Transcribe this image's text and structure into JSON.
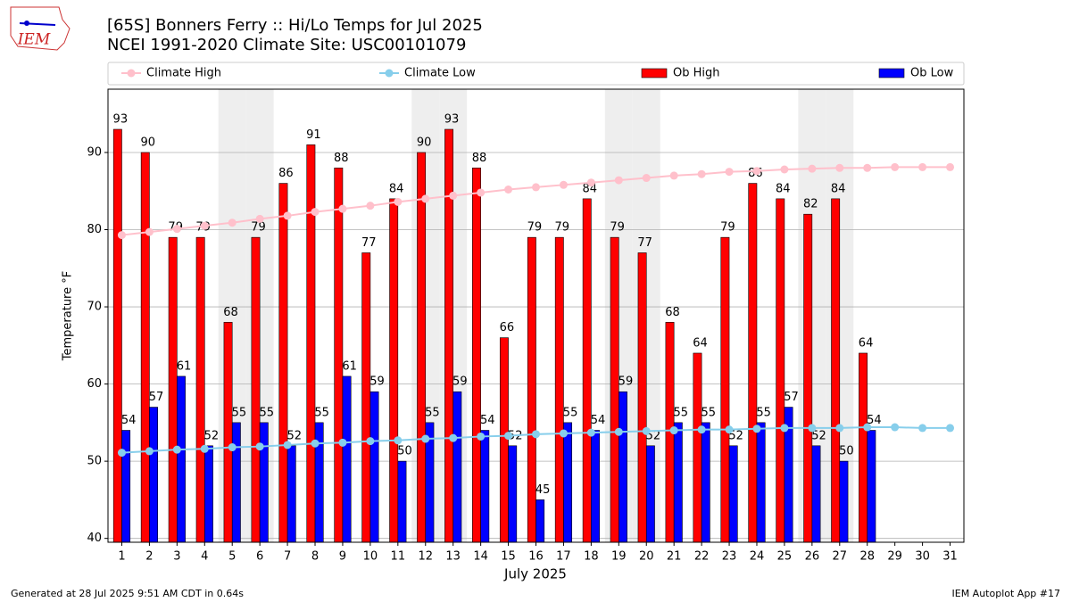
{
  "chart_data": {
    "type": "bar",
    "title": "[65S] Bonners Ferry :: Hi/Lo Temps for Jul 2025",
    "subtitle": "NCEI 1991-2020 Climate Site: USC00101079",
    "x_label": "July 2025",
    "y_label": "Temperature °F",
    "logo_text": "IEM",
    "footer_left": "Generated at 28 Jul 2025 9:51 AM CDT in 0.64s",
    "footer_right": "IEM Autoplot App #17",
    "categories": [
      "1",
      "2",
      "3",
      "4",
      "5",
      "6",
      "7",
      "8",
      "9",
      "10",
      "11",
      "12",
      "13",
      "14",
      "15",
      "16",
      "17",
      "18",
      "19",
      "20",
      "21",
      "22",
      "23",
      "24",
      "25",
      "26",
      "27",
      "28",
      "29",
      "30",
      "31"
    ],
    "shaded_categories": [
      "5",
      "6",
      "12",
      "13",
      "19",
      "20",
      "26",
      "27"
    ],
    "series": [
      {
        "name": "Climate High",
        "style": "line",
        "color": "#ffc0cb",
        "values": [
          79.3,
          79.7,
          80.1,
          80.5,
          80.9,
          81.4,
          81.8,
          82.3,
          82.7,
          83.1,
          83.6,
          84.0,
          84.4,
          84.8,
          85.2,
          85.5,
          85.8,
          86.1,
          86.4,
          86.7,
          87.0,
          87.2,
          87.5,
          87.6,
          87.8,
          87.9,
          88.0,
          88.0,
          88.1,
          88.1,
          88.1
        ]
      },
      {
        "name": "Climate Low",
        "style": "line",
        "color": "#87ceeb",
        "values": [
          51.1,
          51.3,
          51.5,
          51.6,
          51.8,
          51.9,
          52.1,
          52.3,
          52.4,
          52.6,
          52.7,
          52.9,
          53.0,
          53.2,
          53.3,
          53.5,
          53.6,
          53.7,
          53.8,
          53.9,
          54.0,
          54.1,
          54.1,
          54.2,
          54.3,
          54.3,
          54.3,
          54.4,
          54.4,
          54.3,
          54.3
        ]
      },
      {
        "name": "Ob High",
        "style": "bar",
        "color": "#ff0000",
        "values": [
          93,
          90,
          79,
          79,
          68,
          79,
          86,
          91,
          88,
          77,
          84,
          90,
          93,
          88,
          66,
          79,
          79,
          84,
          79,
          77,
          68,
          64,
          79,
          86,
          84,
          82,
          84,
          64,
          null,
          null,
          null
        ]
      },
      {
        "name": "Ob Low",
        "style": "bar",
        "color": "#0000ff",
        "values": [
          54,
          57,
          61,
          52,
          55,
          55,
          52,
          55,
          61,
          59,
          50,
          55,
          59,
          54,
          52,
          45,
          55,
          54,
          59,
          52,
          55,
          55,
          52,
          55,
          57,
          52,
          50,
          54,
          null,
          null,
          null
        ]
      }
    ],
    "ylim": [
      39.5,
      98.2
    ],
    "yticks": [
      40,
      50,
      60,
      70,
      80,
      90
    ],
    "grid": true
  }
}
